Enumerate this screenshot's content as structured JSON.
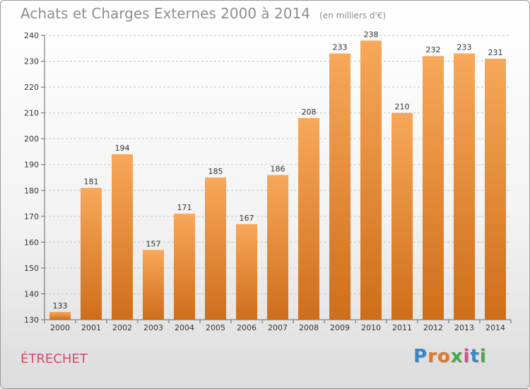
{
  "title": "Achats et Charges Externes 2000 à 2014",
  "subtitle": "(en milliers d'€)",
  "commune": "ÉTRECHET",
  "logo": {
    "text": "Proxiti",
    "letter_colors": [
      "#3a86c8",
      "#e2762a",
      "#e2762a",
      "#4aa84a",
      "#e04a8a",
      "#3a86c8",
      "#4aa84a"
    ]
  },
  "colors": {
    "bar_top": "#f7a85a",
    "bar_bottom": "#cf6e1a",
    "grid": "#c8c8c8",
    "title": "#8e8e8e",
    "commune": "#d94a6c"
  },
  "chart_data": {
    "type": "bar",
    "categories": [
      "2000",
      "2001",
      "2002",
      "2003",
      "2004",
      "2005",
      "2006",
      "2007",
      "2008",
      "2009",
      "2010",
      "2011",
      "2012",
      "2013",
      "2014"
    ],
    "values": [
      133,
      181,
      194,
      157,
      171,
      185,
      167,
      186,
      208,
      233,
      238,
      210,
      232,
      233,
      231
    ],
    "ylim": [
      130,
      240
    ],
    "yticks": [
      130,
      140,
      150,
      160,
      170,
      180,
      190,
      200,
      210,
      220,
      230,
      240
    ],
    "grid": true,
    "grid_style": "dashed-horizontal",
    "data_labels": true
  }
}
